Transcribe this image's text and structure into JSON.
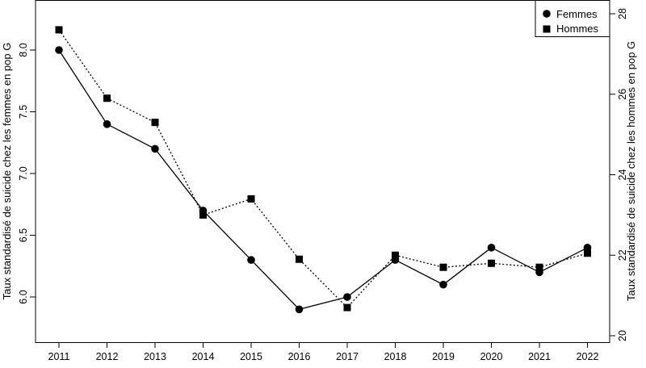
{
  "chart_data": {
    "type": "line",
    "x": [
      2011,
      2012,
      2013,
      2014,
      2015,
      2016,
      2017,
      2018,
      2019,
      2020,
      2021,
      2022
    ],
    "ylabel_left": "Taux standardisé de suicide chez les femmes en pop G",
    "ylabel_right": "Taux standardisé de suicide chez les hommes en pop G",
    "ylim_left": [
      5.6,
      8.3
    ],
    "ylim_right": [
      20,
      28
    ],
    "yticks_left": [
      "6.0",
      "6.5",
      "7.0",
      "7.5",
      "8.0"
    ],
    "yticks_right": [
      "20",
      "22",
      "24",
      "26",
      "28"
    ],
    "legend_position": "top-right",
    "series": [
      {
        "name": "Femmes",
        "axis": "left",
        "marker": "circle",
        "line_style": "solid",
        "values": [
          8.0,
          7.4,
          7.2,
          6.7,
          6.3,
          5.9,
          6.0,
          6.3,
          6.1,
          6.4,
          6.2,
          6.4
        ]
      },
      {
        "name": "Hommes",
        "axis": "right",
        "marker": "square",
        "line_style": "dotted",
        "values": [
          27.6,
          25.9,
          25.3,
          23.0,
          23.4,
          21.9,
          20.7,
          22.0,
          21.7,
          21.8,
          21.7,
          22.05
        ]
      }
    ]
  }
}
